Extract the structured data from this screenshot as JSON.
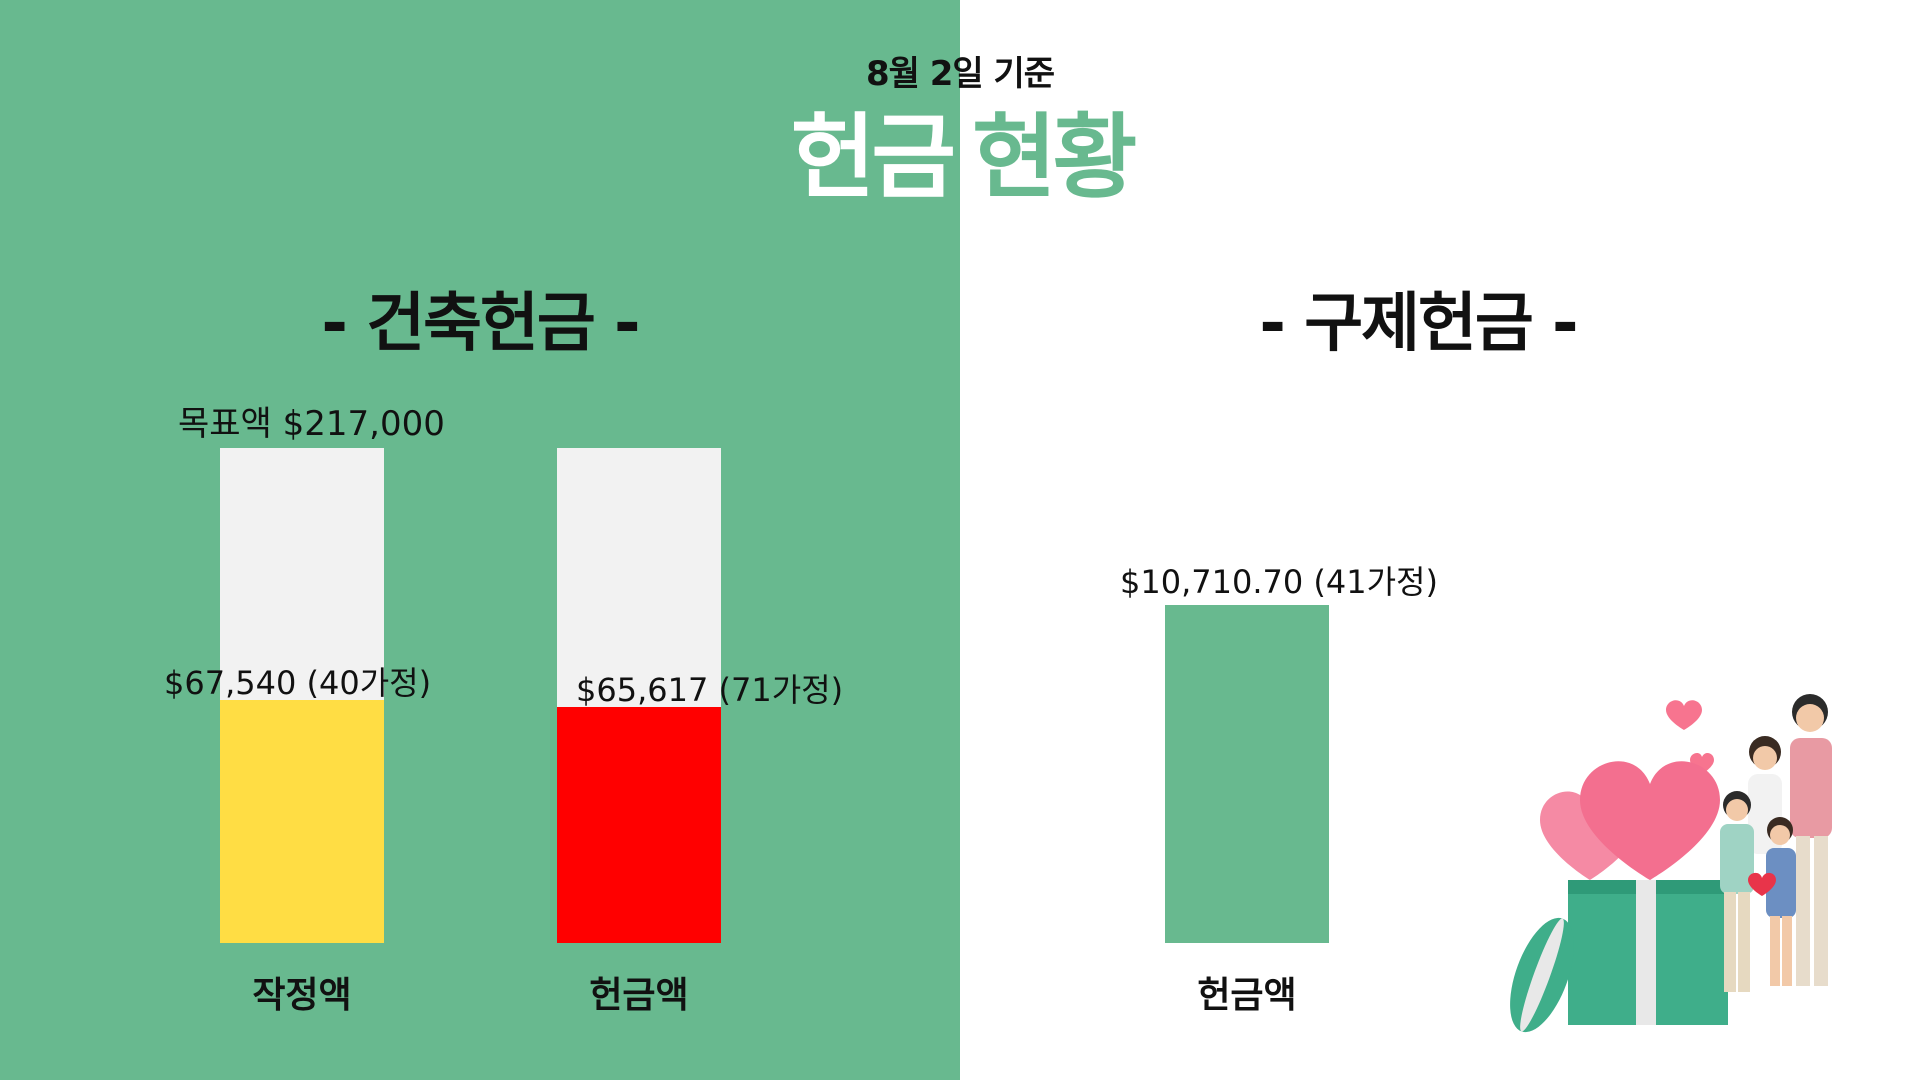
{
  "header": {
    "date": "8월 2일 기준",
    "title_part1": "헌금",
    "title_part2": "현황"
  },
  "colors": {
    "green": "#68b98f",
    "yellow": "#ffdd44",
    "red": "#ff0000",
    "track": "#f2f2f2"
  },
  "chart_data": [
    {
      "type": "bar",
      "title": "- 건축헌금 -",
      "target_label": "목표액 $217,000",
      "target": 217000,
      "ylim": [
        0,
        217000
      ],
      "categories": [
        "작정액",
        "헌금액"
      ],
      "values": [
        67540,
        65617
      ],
      "value_labels": [
        "$67,540 (40가정)",
        "$65,617 (71가정)"
      ],
      "colors": [
        "#ffdd44",
        "#ff0000"
      ]
    },
    {
      "type": "bar",
      "title": "- 구제헌금 -",
      "categories": [
        "헌금액"
      ],
      "values": [
        10710.7
      ],
      "value_labels": [
        "$10,710.70 (41가정)"
      ],
      "colors": [
        "#68b98f"
      ]
    }
  ],
  "illustration": {
    "icons": [
      "gift-box-icon",
      "heart-icon",
      "family-icon"
    ]
  }
}
